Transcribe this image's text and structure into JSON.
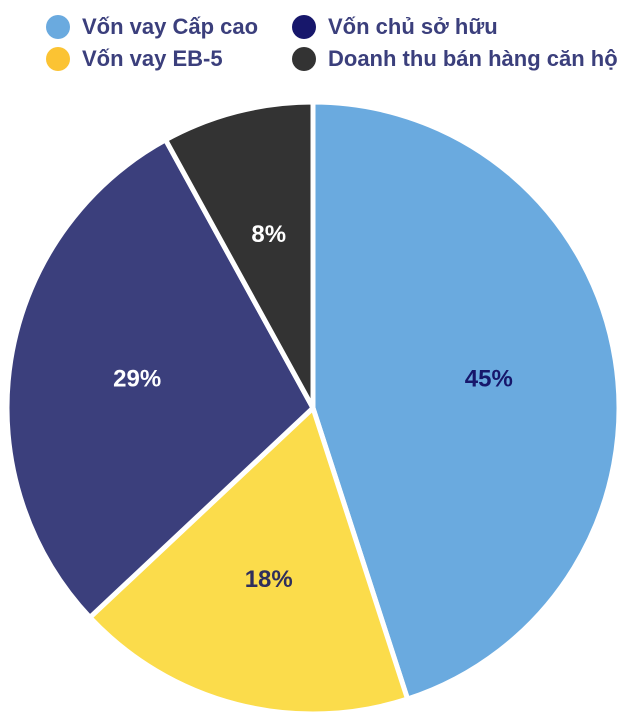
{
  "chart_data": {
    "type": "pie",
    "title": "",
    "legend_placement": "top",
    "slices": [
      {
        "name": "Vốn vay Cấp cao",
        "value": 45,
        "label": "45%",
        "color": "#6aaadf",
        "label_color": "#17176b"
      },
      {
        "name": "Vốn vay EB-5",
        "value": 18,
        "label": "18%",
        "color": "#fbdc4b",
        "label_color": "#2f2f5c"
      },
      {
        "name": "Vốn chủ sở hữu",
        "value": 29,
        "label": "29%",
        "color": "#3b3f7c",
        "label_color": "#ffffff"
      },
      {
        "name": "Doanh thu bán hàng căn hộ",
        "value": 8,
        "label": "8%",
        "color": "#333333",
        "label_color": "#ffffff"
      }
    ]
  },
  "legend": {
    "items": [
      {
        "label": "Vốn vay Cấp cao",
        "color": "#6aaadf"
      },
      {
        "label": "Vốn chủ sở hữu",
        "color": "#17176b"
      },
      {
        "label": "Vốn vay EB-5",
        "color": "#fbc333"
      },
      {
        "label": "Doanh thu bán hàng căn hộ",
        "color": "#333333"
      }
    ]
  }
}
